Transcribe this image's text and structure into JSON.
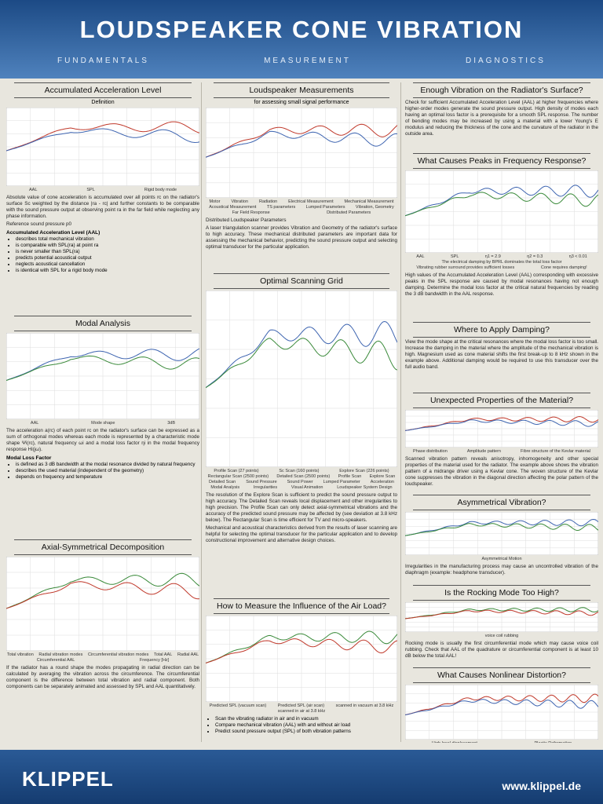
{
  "header": {
    "title": "LOUDSPEAKER CONE VIBRATION",
    "tabs": [
      "FUNDAMENTALS",
      "MEASUREMENT",
      "DIAGNOSTICS"
    ]
  },
  "columns": [
    {
      "sections": [
        {
          "title": "Accumulated Acceleration Level",
          "subtitle": "Definition",
          "paragraphs": [
            "Absolute value of cone acceleration is accumulated over all points rc on the radiator's surface Sc weighted by the distance |ra - rc| and further constants to be comparable with the sound pressure output at observing point ra in the far field while neglecting any phase information.",
            "Reference sound pressure p0"
          ],
          "subhead": "Accumulated Acceleration Level (AAL)",
          "bullets": [
            "describes total mechanical vibration",
            "is comparable with SPL(ra) at point ra",
            "is never smaller than SPL(ra)",
            "predicts potential acoustical output",
            "neglects acoustical cancellation",
            "is identical with SPL for a rigid body mode"
          ],
          "figure_labels": [
            "AAL",
            "SPL",
            "Rigid body mode"
          ]
        },
        {
          "title": "Modal Analysis",
          "paragraphs": [
            "The acceleration a(rc) of each point rc on the radiator's surface can be expressed as a sum of orthogonal modes whereas each mode is represented by a characteristic mode shape Ψi(rc), natural frequency ωi and a modal loss factor ηi in the modal frequency response Hi(jω)."
          ],
          "subhead": "Modal Loss Factor",
          "bullets": [
            "is defined as 3 dB bandwidth at the modal resonance divided by natural frequency",
            "describes the used material (independent of the geometry)",
            "depends on frequency and temperature"
          ],
          "figure_labels": [
            "AAL",
            "Mode shape",
            "3dB"
          ]
        },
        {
          "title": "Axial-Symmetrical Decomposition",
          "paragraphs": [
            "If the radiator has a round shape the modes propagating in radial direction can be calculated by averaging the vibration across the circumference. The circumferential component is the difference between total vibration and radial component. Both components can be separately animated and assessed by SPL and AAL quantitatively."
          ],
          "figure_labels": [
            "Total vibration",
            "Radial vibration modes",
            "Circumferential vibration modes",
            "Total AAL",
            "Radial AAL",
            "Circumferential AAL",
            "Frequency [Hz]"
          ]
        }
      ]
    },
    {
      "sections": [
        {
          "title": "Loudspeaker Measurements",
          "subtitle": "for assessing small signal performance",
          "figure_labels": [
            "Motor",
            "Vibration",
            "Radiation",
            "Electrical Measurement",
            "Mechanical Measurement",
            "Acoustical Measurement",
            "TS parameters",
            "Lumped Parameters",
            "Vibration, Geometry",
            "Far Field Response",
            "Distributed Parameters"
          ],
          "paragraphs": [
            "Distributed Loudspeaker Parameters",
            "A laser triangulation scanner provides Vibration and Geometry of the radiator's surface to high accuracy. These mechanical distributed parameters are important data for assessing the mechanical behavior, predicting the sound pressure output and selecting optimal transducer for the particular application."
          ]
        },
        {
          "title": "Optimal Scanning Grid",
          "figure_labels": [
            "Profile Scan (27 points)",
            "Sc Scan (160 points)",
            "Explore Scan (226 points)",
            "Rectangular Scan (2500 points)",
            "Detailed Scan (2500 points)",
            "Profile Scan",
            "Explore Scan",
            "Detailed Scan",
            "Sound Pressure",
            "Sound Power",
            "Lumped Parameter",
            "Acceleration",
            "Modal Analysis",
            "Irregularities",
            "Visual Animation",
            "Loudspeaker System Design"
          ],
          "paragraphs": [
            "The resolution of the Explore Scan is sufficient to predict the sound pressure output to high accuracy. The Detailed Scan reveals local displacement and other irregularities to high precision. The Profile Scan can only detect axial-symmetrical vibrations and the accuracy of the predicted sound pressure may be affected by (see deviation at 3.8 kHz below). The Rectangular Scan is time efficient for TV and micro-speakers.",
            "Mechanical and acoustical characteristics derived from the results of laser scanning are helpful for selecting the optimal transducer for the particular application and to develop constructional improvement and alternative design choices."
          ]
        },
        {
          "title": "How to Measure the Influence of the Air Load?",
          "figure_labels": [
            "Predicted SPL (vacuum scan)",
            "Predicted SPL (air scan)",
            "scanned in vacuum at 3.8 kHz",
            "scanned in air at 3.8 kHz"
          ],
          "bullets": [
            "Scan the vibrating radiator in air and in vacuum",
            "Compare mechanical vibration (AAL) with and without air load",
            "Predict sound pressure output (SPL) of both vibration patterns"
          ]
        }
      ]
    },
    {
      "sections": [
        {
          "title": "Enough Vibration on the Radiator's Surface?",
          "paragraphs": [
            "Check for sufficient Accumulated Acceleration Level (AAL) at higher frequencies where higher-order modes generate the sound pressure output. High density of modes each having an optimal loss factor is a prerequisite for a smooth SPL response. The number of bending modes may be increased by using a material with a lower Young's E modulus and reducing the thickness of the cone and the curvature of the radiator in the outside area."
          ]
        },
        {
          "title": "What Causes Peaks in Frequency Response?",
          "paragraphs": [
            "High values of the Accumulated Acceleration Level (AAL) corresponding with excessive peaks in the SPL response are caused by modal resonances having not enough damping. Determine the modal loss factor at the critical natural frequencies by reading the 3 dB bandwidth in the AAL response."
          ],
          "figure_labels": [
            "AAL",
            "SPL",
            "η1 = 2.9",
            "η2 = 0.3",
            "η3 < 0.01",
            "The electrical damping by BPRL dominates the total loss factor",
            "Vibrating rubber surround provides sufficient losses",
            "Cone requires damping!"
          ]
        },
        {
          "title": "Where to Apply Damping?",
          "paragraphs": [
            "View the mode shape at the critical resonances where the modal loss factor is too small. Increase the damping in the material where the amplitude of the mechanical vibration is high. Magnesium used as cone material shifts the first break-up to 8 kHz shown in the example above. Additional damping would be required to use this transducer over the full audio band."
          ]
        },
        {
          "title": "Unexpected Properties of the Material?",
          "figure_labels": [
            "Phase distribution",
            "Amplitude pattern",
            "Fibre structure of the Kevlar material"
          ],
          "paragraphs": [
            "Scanned vibration pattern reveals anisotropy, inhomogeneity and other special properties of the material used for the radiator. The example above shows the vibration pattern of a midrange driver using a Kevlar cone. The woven structure of the Kevlar cone suppresses the vibration in the diagonal direction affecting the polar pattern of the loudspeaker."
          ]
        },
        {
          "title": "Asymmetrical Vibration?",
          "figure_labels": [
            "Asymmetrical Motion"
          ],
          "paragraphs": [
            "Irregularities in the manufacturing process may cause an uncontrolled vibration of the diaphragm (example: headphone transducer)."
          ]
        },
        {
          "title": "Is the Rocking Mode Too High?",
          "figure_labels": [
            "voice coil rubbing"
          ],
          "paragraphs": [
            "Rocking mode is usually the first circumferential mode which may cause voice coil rubbing. Check that AAL of the quadrature or circumferential component is at least 10 dB below the total AAL!"
          ]
        },
        {
          "title": "What Causes Nonlinear Distortion?",
          "figure_labels": [
            "High local displacement",
            "Plastic Deformation"
          ]
        }
      ]
    }
  ],
  "footer": {
    "logo": "KLIPPEL",
    "url": "www.klippel.de"
  }
}
